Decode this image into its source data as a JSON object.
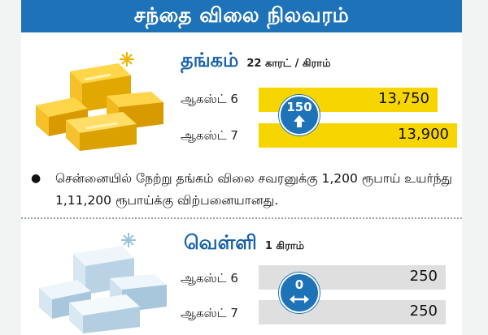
{
  "header": {
    "title": "சந்தை விலை நிலவரம்"
  },
  "gold": {
    "title": "தங்கம்",
    "unit": "22 காரட் / கிராம்",
    "rows": [
      {
        "label": "ஆகஸ்ட் 6",
        "value": "13,750"
      },
      {
        "label": "ஆகஸ்ட் 7",
        "value": "13,900"
      }
    ],
    "change": "150",
    "change_icon": "arrow-up-icon",
    "bar_color": "#f7d500"
  },
  "note": {
    "text": "சென்னையில் நேற்று தங்கம் விலை சவரனுக்கு 1,200 ரூபாய் உயர்ந்து 1,11,200 ரூபாய்க்கு விற்பனையானது."
  },
  "silver": {
    "title": "வெள்ளி",
    "unit": "1 கிராம்",
    "rows": [
      {
        "label": "ஆகஸ்ட் 6",
        "value": "250"
      },
      {
        "label": "ஆகஸ்ட் 7",
        "value": "250"
      }
    ],
    "change": "0",
    "change_icon": "arrow-left-right-icon",
    "bar_color": "#dfdfe0"
  },
  "colors": {
    "header_bg": "#1e73b8",
    "title_blue": "#1660a8"
  }
}
